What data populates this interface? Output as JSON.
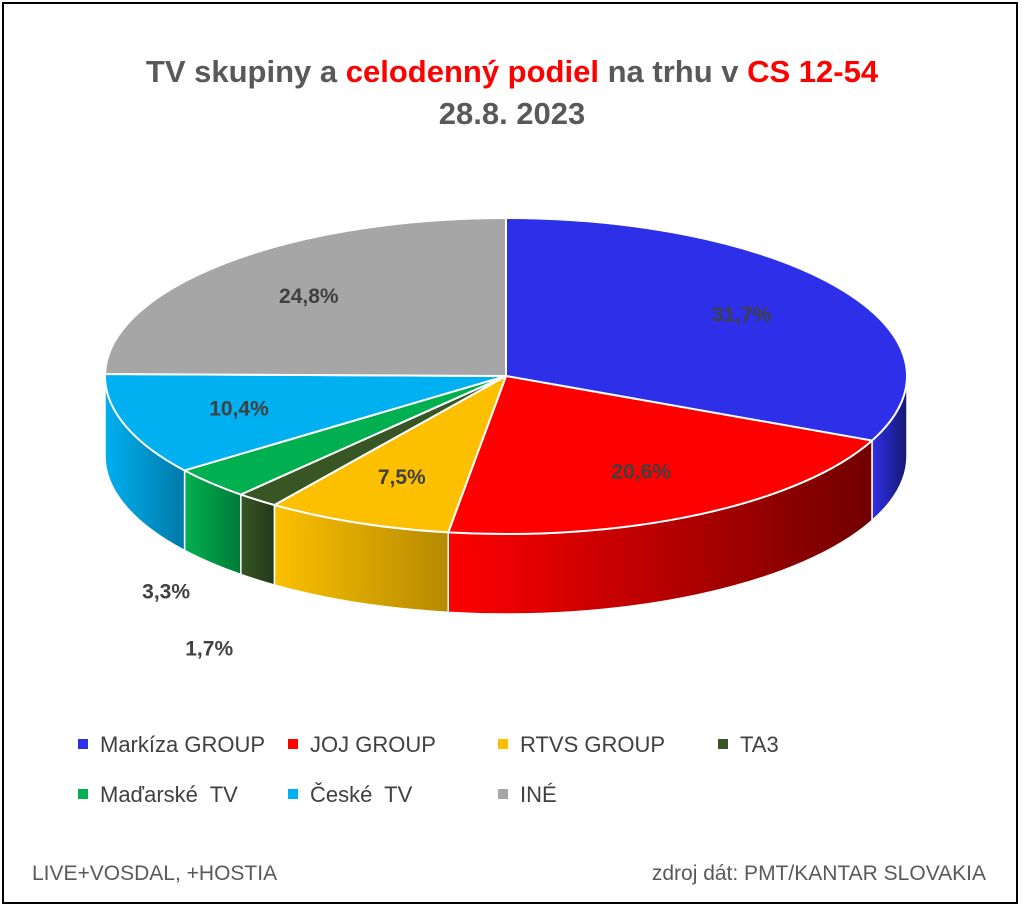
{
  "title": {
    "part1": "TV skupiny a ",
    "highlight1": "celodenný podiel",
    "part2": " na trhu v ",
    "highlight2": "CS 12-54",
    "date": "28.8. 2023"
  },
  "chart_data": {
    "type": "pie",
    "title": "TV skupiny a celodenný podiel na trhu v CS 12-54 28.8. 2023",
    "categories": [
      "Markíza GROUP",
      "JOJ GROUP",
      "RTVS GROUP",
      "TA3",
      "Maďarské  TV",
      "České  TV",
      "INÉ"
    ],
    "values": [
      31.7,
      20.6,
      7.5,
      1.7,
      3.3,
      10.4,
      24.8
    ],
    "value_labels": [
      "31,7%",
      "20,6%",
      "7,5%",
      "1,7%",
      "3,3%",
      "10,4%",
      "24,8%"
    ],
    "colors": [
      "#2e2fe8",
      "#ff0000",
      "#fcc000",
      "#375623",
      "#00b050",
      "#00b0f0",
      "#a6a6a6"
    ],
    "side_colors": [
      "#16186e",
      "#700000",
      "#b58a00",
      "#24381a",
      "#007a38",
      "#0079a8",
      "#6e6e6e"
    ],
    "legend_placement": "bottom"
  },
  "legend": {
    "rows": [
      [
        "Markíza GROUP",
        "JOJ GROUP",
        "RTVS GROUP",
        "TA3"
      ],
      [
        "Maďarské  TV",
        "České  TV",
        "INÉ"
      ]
    ]
  },
  "footer": {
    "left": "LIVE+VOSDAL, +HOSTIA",
    "right": "zdroj dát: PMT/KANTAR SLOVAKIA"
  }
}
